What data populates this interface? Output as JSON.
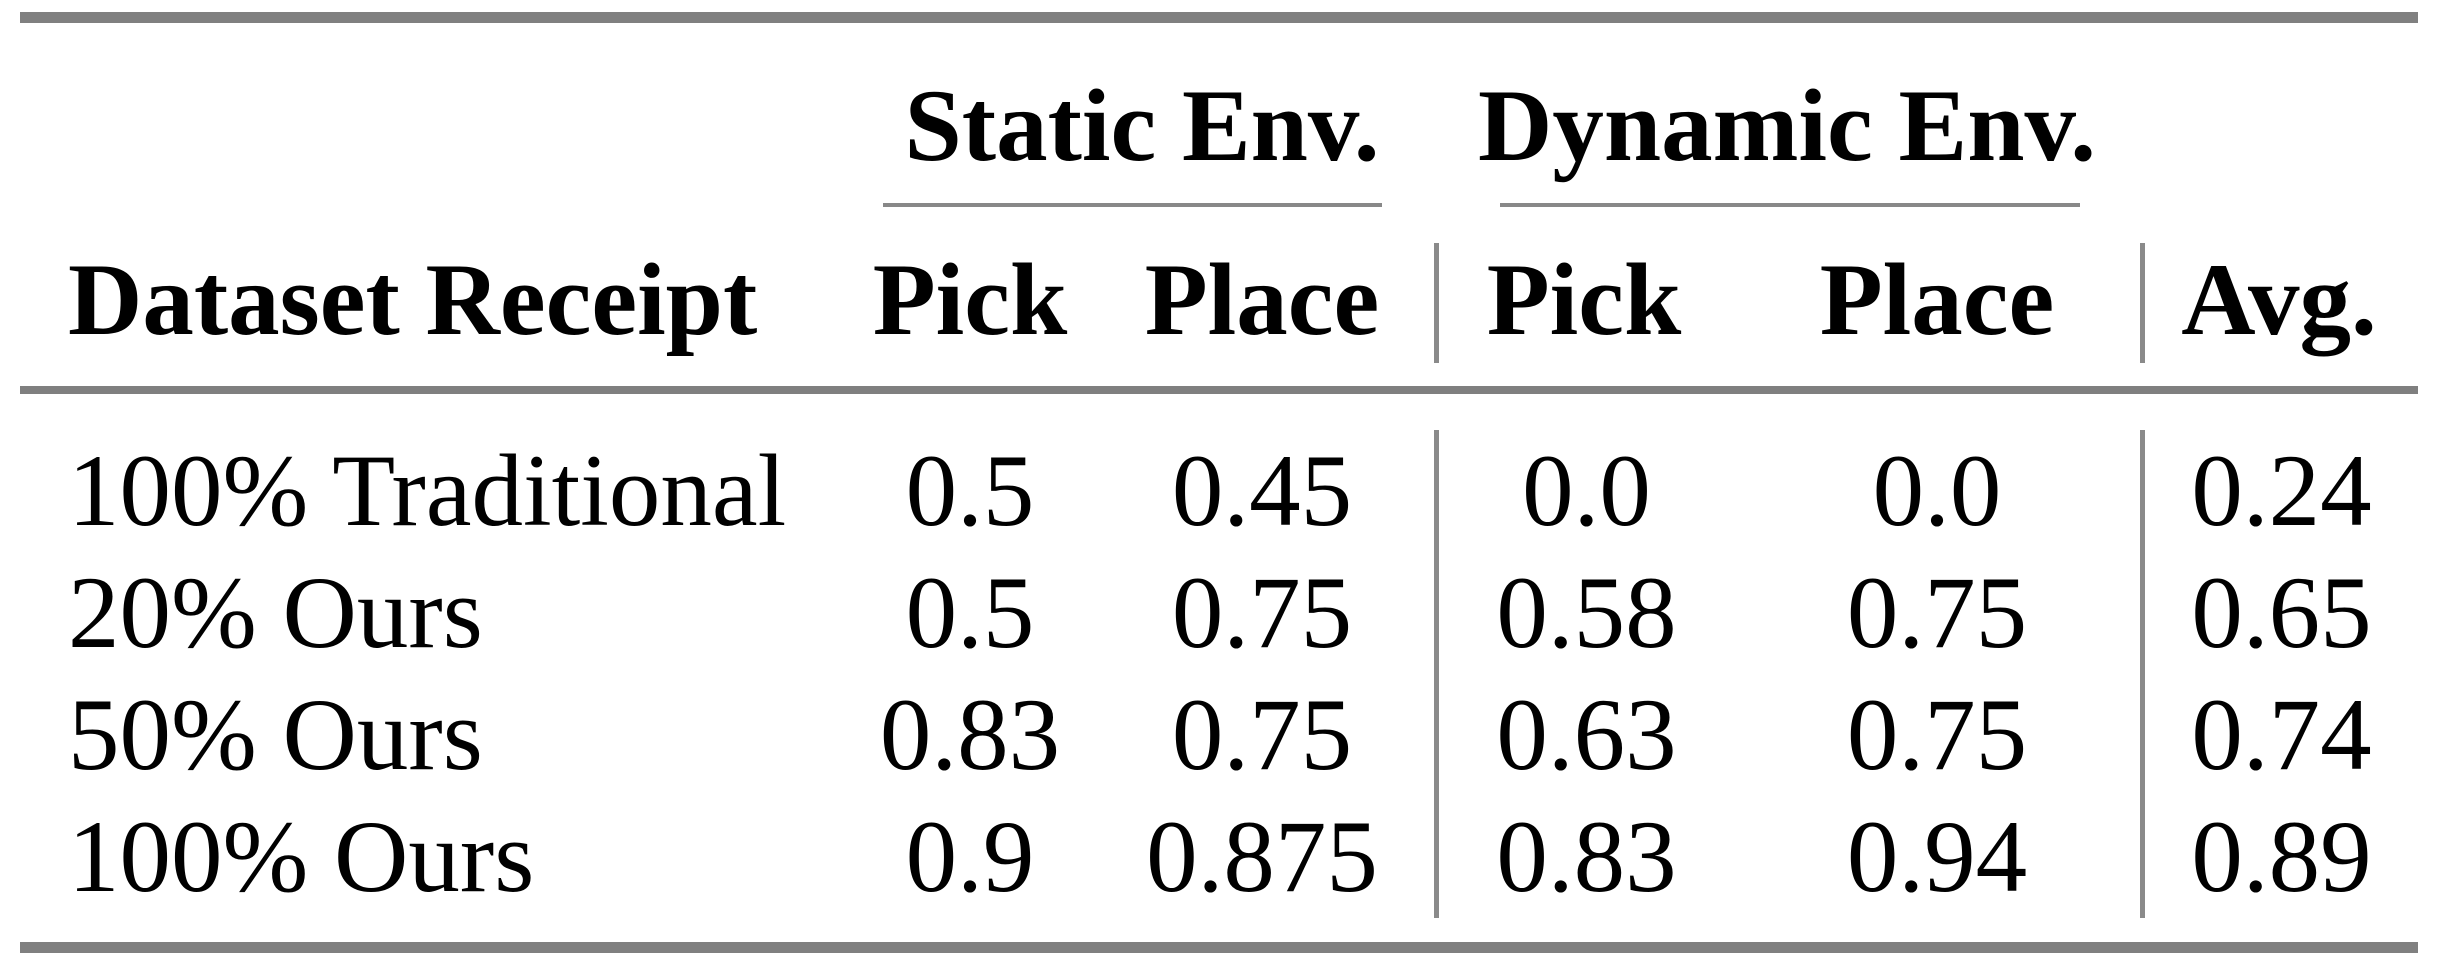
{
  "table": {
    "group_headers": {
      "static": "Static Env.",
      "dynamic": "Dynamic Env."
    },
    "col_headers": {
      "label_col": "Dataset Receipt",
      "static_pick": "Pick",
      "static_place": "Place",
      "dynamic_pick": "Pick",
      "dynamic_place": "Place",
      "avg": "Avg."
    },
    "rows": [
      {
        "label": "100% Traditional",
        "values": [
          "0.5",
          "0.45",
          "0.0",
          "0.0",
          "0.24"
        ]
      },
      {
        "label": "20% Ours",
        "values": [
          "0.5",
          "0.75",
          "0.58",
          "0.75",
          "0.65"
        ]
      },
      {
        "label": "50% Ours",
        "values": [
          "0.83",
          "0.75",
          "0.63",
          "0.75",
          "0.74"
        ]
      },
      {
        "label": "100% Ours",
        "values": [
          "0.9",
          "0.875",
          "0.83",
          "0.94",
          "0.89"
        ]
      }
    ]
  },
  "chart_data": {
    "type": "table",
    "title": "",
    "columns": [
      "Dataset Receipt",
      "Static Env. Pick",
      "Static Env. Place",
      "Dynamic Env. Pick",
      "Dynamic Env. Place",
      "Avg."
    ],
    "rows": [
      [
        "100% Traditional",
        0.5,
        0.45,
        0.0,
        0.0,
        0.24
      ],
      [
        "20% Ours",
        0.5,
        0.75,
        0.58,
        0.75,
        0.65
      ],
      [
        "50% Ours",
        0.83,
        0.75,
        0.63,
        0.75,
        0.74
      ],
      [
        "100% Ours",
        0.9,
        0.875,
        0.83,
        0.94,
        0.89
      ]
    ]
  },
  "colors": {
    "rule_heavy": "#808080",
    "rule_mid": "#7f7f7f",
    "rule_light": "#888888",
    "separator": "#8a8a8a",
    "text": "#000000",
    "background": "#ffffff"
  }
}
